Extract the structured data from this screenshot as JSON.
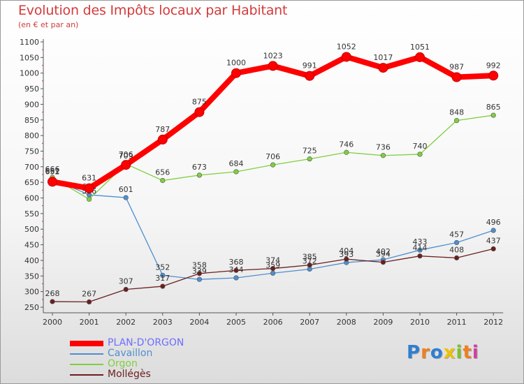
{
  "chart_data": {
    "type": "line",
    "title": "Evolution des Impôts locaux par Habitant",
    "subtitle": "(en € et par an)",
    "x": [
      "2000",
      "2001",
      "2002",
      "2003",
      "2004",
      "2005",
      "2006",
      "2007",
      "2008",
      "2009",
      "2010",
      "2011",
      "2012"
    ],
    "ylim": [
      250,
      1100
    ],
    "yticks": [
      250,
      300,
      350,
      400,
      450,
      500,
      550,
      600,
      650,
      700,
      750,
      800,
      850,
      900,
      950,
      1000,
      1050,
      1100
    ],
    "grid": false,
    "legend_position": "bottom-left",
    "series": [
      {
        "name": "PLAN-D'ORGON",
        "color": "#ff0000",
        "labelColor": "#6d6dff",
        "values": [
          652,
          631,
          706,
          787,
          875,
          1000,
          1023,
          991,
          1052,
          1017,
          1051,
          987,
          992
        ]
      },
      {
        "name": "Cavaillon",
        "color": "#4f8fcf",
        "labelColor": "#4f8fcf",
        "values": [
          661,
          610,
          601,
          352,
          339,
          344,
          359,
          372,
          393,
          402,
          433,
          457,
          496
        ]
      },
      {
        "name": "Orgon",
        "color": "#7fcf3f",
        "labelColor": "#7fcf3f",
        "values": [
          666,
          596,
          709,
          656,
          673,
          684,
          706,
          725,
          746,
          736,
          740,
          848,
          865
        ]
      },
      {
        "name": "Mollégès",
        "color": "#6b1f1f",
        "labelColor": "#6b1f1f",
        "values": [
          268,
          267,
          307,
          317,
          358,
          368,
          374,
          385,
          404,
          394,
          414,
          408,
          437
        ]
      }
    ]
  },
  "brand": {
    "letters": [
      "P",
      "r",
      "o",
      "x",
      "i",
      "t",
      "i"
    ],
    "colors": [
      "#2f7fd1",
      "#f07f1f",
      "#2f7fd1",
      "#f0c000",
      "#7fbf2f",
      "#f07f1f",
      "#d03fa0"
    ]
  }
}
